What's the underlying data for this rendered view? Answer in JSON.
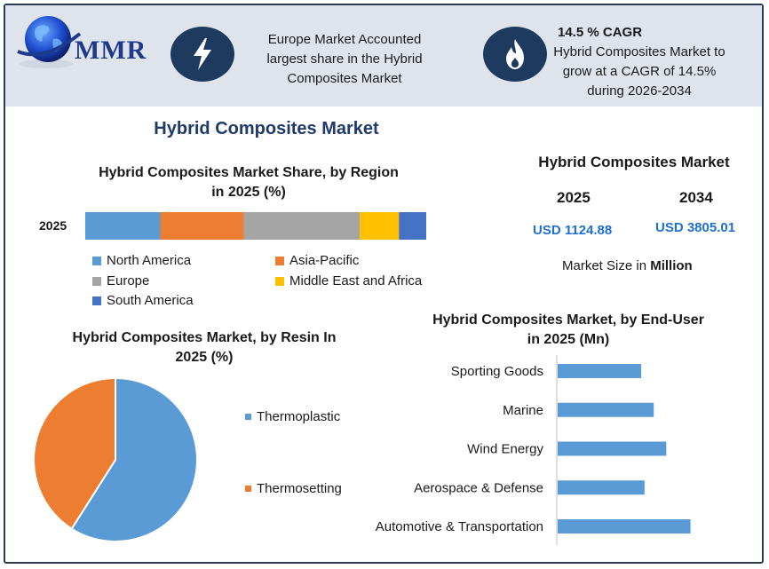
{
  "header": {
    "logo_text": "MMR",
    "info1": [
      "Europe Market Accounted",
      "largest share in the Hybrid",
      "Composites Market"
    ],
    "info2_title": "14.5 % CAGR",
    "info2": [
      "Hybrid Composites Market to",
      "grow at a CAGR of 14.5%",
      "during 2026-2034"
    ]
  },
  "main_title": "Hybrid Composites Market",
  "market_size": {
    "title": "Hybrid Composites Market",
    "year1": "2025",
    "year2": "2034",
    "value1": "USD 1124.88",
    "value2": "USD 3805.01",
    "note_prefix": "Market Size in ",
    "note_unit": "Million"
  },
  "colors": {
    "blue": "#5b9bd5",
    "orange": "#ed7d31",
    "gray": "#a5a5a5",
    "yellow": "#ffc000",
    "darkblue": "#4472c4",
    "navy": "#1e3a5f"
  },
  "chart_data": [
    {
      "type": "bar",
      "orientation": "horizontal-stacked",
      "title": "Hybrid Composites Market Share, by Region in 2025 (%)",
      "title_lines": [
        "Hybrid Composites Market Share, by Region",
        "in 2025 (%)"
      ],
      "categories": [
        "2025"
      ],
      "series": [
        {
          "name": "North America",
          "values": [
            22
          ]
        },
        {
          "name": "Asia-Pacific",
          "values": [
            24.5
          ]
        },
        {
          "name": "Europe",
          "values": [
            34
          ]
        },
        {
          "name": "Middle East and Africa",
          "values": [
            11.5
          ]
        },
        {
          "name": "South America",
          "values": [
            8
          ]
        }
      ],
      "xlim": [
        0,
        100
      ],
      "grid": false,
      "legend": "bottom"
    },
    {
      "type": "pie",
      "title": "Hybrid Composites Market, by Resin In 2025 (%)",
      "title_lines": [
        "Hybrid Composites Market, by Resin In",
        "2025 (%)"
      ],
      "categories": [
        "Thermoplastic",
        "Thermosetting"
      ],
      "values": [
        59,
        41
      ],
      "legend": "right"
    },
    {
      "type": "bar",
      "orientation": "horizontal",
      "title": "Hybrid Composites Market, by End-User in 2025 (Mn)",
      "title_lines": [
        "Hybrid Composites Market, by End-User",
        "in 2025 (Mn)"
      ],
      "categories": [
        "Sporting Goods",
        "Marine",
        "Wind Energy",
        "Aerospace & Defense",
        "Automotive & Transportation"
      ],
      "values": [
        100,
        115,
        130,
        104,
        159
      ],
      "xlim": [
        0,
        220
      ],
      "grid": false
    }
  ]
}
